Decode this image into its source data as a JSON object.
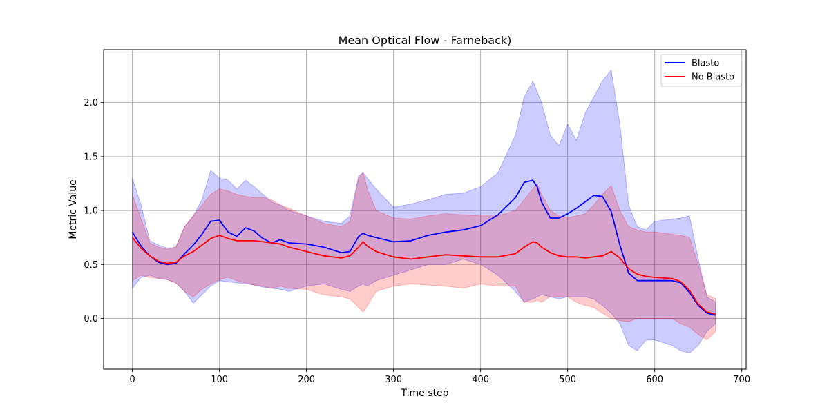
{
  "chart_data": {
    "type": "line",
    "title": "Mean Optical Flow - Farneback)",
    "xlabel": "Time step",
    "ylabel": "Metric Value",
    "xlim": [
      -33,
      705
    ],
    "ylim": [
      -0.47,
      2.49
    ],
    "xticks": [
      0,
      100,
      200,
      300,
      400,
      500,
      600,
      700
    ],
    "yticks": [
      0.0,
      0.5,
      1.0,
      1.5,
      2.0
    ],
    "xtick_labels": [
      "0",
      "100",
      "200",
      "300",
      "400",
      "500",
      "600",
      "700"
    ],
    "ytick_labels": [
      "0.0",
      "0.5",
      "1.0",
      "1.5",
      "2.0"
    ],
    "grid": true,
    "legend_position": "top-right",
    "series": [
      {
        "name": "Blasto",
        "color": "#0000ff",
        "band_color": "#0000ff",
        "x": [
          0,
          10,
          20,
          30,
          40,
          50,
          60,
          70,
          80,
          90,
          100,
          110,
          120,
          130,
          140,
          150,
          160,
          170,
          180,
          200,
          220,
          240,
          250,
          260,
          265,
          270,
          280,
          300,
          320,
          340,
          360,
          380,
          400,
          420,
          440,
          450,
          460,
          465,
          470,
          480,
          490,
          500,
          510,
          520,
          530,
          540,
          550,
          560,
          570,
          580,
          590,
          600,
          620,
          630,
          640,
          650,
          660,
          670
        ],
        "mean": [
          0.8,
          0.67,
          0.58,
          0.52,
          0.5,
          0.51,
          0.6,
          0.68,
          0.78,
          0.9,
          0.91,
          0.8,
          0.76,
          0.84,
          0.81,
          0.74,
          0.7,
          0.73,
          0.7,
          0.69,
          0.66,
          0.61,
          0.62,
          0.76,
          0.79,
          0.77,
          0.75,
          0.71,
          0.72,
          0.77,
          0.8,
          0.82,
          0.86,
          0.96,
          1.12,
          1.26,
          1.28,
          1.22,
          1.08,
          0.93,
          0.93,
          0.97,
          1.02,
          1.08,
          1.14,
          1.13,
          0.99,
          0.68,
          0.42,
          0.35,
          0.35,
          0.35,
          0.35,
          0.33,
          0.24,
          0.12,
          0.05,
          0.03
        ],
        "lower": [
          0.28,
          0.38,
          0.4,
          0.37,
          0.36,
          0.33,
          0.25,
          0.14,
          0.22,
          0.3,
          0.35,
          0.34,
          0.33,
          0.32,
          0.31,
          0.29,
          0.28,
          0.27,
          0.25,
          0.3,
          0.32,
          0.27,
          0.25,
          0.3,
          0.32,
          0.3,
          0.35,
          0.4,
          0.45,
          0.5,
          0.5,
          0.55,
          0.5,
          0.4,
          0.25,
          0.15,
          0.18,
          0.2,
          0.22,
          0.2,
          0.18,
          0.2,
          0.2,
          0.2,
          0.18,
          0.12,
          0.05,
          -0.05,
          -0.25,
          -0.3,
          -0.2,
          -0.2,
          -0.25,
          -0.3,
          -0.32,
          -0.25,
          -0.12,
          -0.05
        ],
        "upper": [
          1.3,
          1.05,
          0.72,
          0.68,
          0.65,
          0.66,
          0.85,
          0.95,
          1.1,
          1.37,
          1.3,
          1.28,
          1.2,
          1.28,
          1.22,
          1.15,
          1.08,
          1.05,
          1.0,
          0.95,
          0.9,
          0.88,
          0.95,
          1.32,
          1.35,
          1.3,
          1.2,
          1.03,
          1.06,
          1.1,
          1.15,
          1.16,
          1.22,
          1.35,
          1.7,
          2.05,
          2.2,
          2.1,
          2.0,
          1.7,
          1.6,
          1.8,
          1.65,
          1.9,
          2.05,
          2.2,
          2.3,
          1.8,
          1.05,
          0.85,
          0.82,
          0.9,
          0.92,
          0.93,
          0.95,
          0.55,
          0.2,
          0.15
        ]
      },
      {
        "name": "No Blasto",
        "color": "#ff0000",
        "band_color": "#ff0000",
        "x": [
          0,
          10,
          20,
          30,
          40,
          50,
          60,
          70,
          80,
          90,
          100,
          110,
          120,
          130,
          140,
          150,
          160,
          170,
          180,
          200,
          220,
          240,
          250,
          260,
          265,
          270,
          280,
          300,
          320,
          340,
          360,
          380,
          400,
          420,
          440,
          450,
          460,
          465,
          470,
          480,
          490,
          500,
          510,
          520,
          530,
          540,
          550,
          560,
          570,
          580,
          590,
          600,
          620,
          630,
          640,
          650,
          660,
          670
        ],
        "mean": [
          0.75,
          0.65,
          0.58,
          0.53,
          0.51,
          0.52,
          0.58,
          0.62,
          0.68,
          0.74,
          0.77,
          0.74,
          0.72,
          0.72,
          0.72,
          0.71,
          0.7,
          0.69,
          0.66,
          0.62,
          0.58,
          0.56,
          0.58,
          0.66,
          0.71,
          0.67,
          0.62,
          0.57,
          0.55,
          0.57,
          0.59,
          0.58,
          0.57,
          0.57,
          0.6,
          0.66,
          0.71,
          0.7,
          0.66,
          0.61,
          0.58,
          0.57,
          0.57,
          0.56,
          0.57,
          0.58,
          0.62,
          0.56,
          0.46,
          0.41,
          0.39,
          0.38,
          0.37,
          0.34,
          0.26,
          0.13,
          0.06,
          0.04
        ],
        "lower": [
          0.35,
          0.4,
          0.38,
          0.37,
          0.36,
          0.33,
          0.25,
          0.2,
          0.27,
          0.32,
          0.36,
          0.38,
          0.35,
          0.33,
          0.31,
          0.3,
          0.28,
          0.3,
          0.28,
          0.27,
          0.22,
          0.2,
          0.18,
          0.1,
          0.06,
          0.12,
          0.25,
          0.3,
          0.32,
          0.31,
          0.3,
          0.28,
          0.32,
          0.3,
          0.3,
          0.15,
          0.15,
          0.17,
          0.15,
          0.2,
          0.2,
          0.2,
          0.15,
          0.12,
          0.1,
          0.05,
          0.0,
          -0.02,
          -0.03,
          0.0,
          0.0,
          0.0,
          0.0,
          -0.05,
          -0.08,
          -0.15,
          -0.2,
          -0.12
        ],
        "upper": [
          1.15,
          0.92,
          0.7,
          0.66,
          0.64,
          0.66,
          0.85,
          0.95,
          1.05,
          1.15,
          1.2,
          1.18,
          1.15,
          1.13,
          1.12,
          1.12,
          1.1,
          1.05,
          1.02,
          0.95,
          0.88,
          0.85,
          0.9,
          1.3,
          1.35,
          1.2,
          1.0,
          0.93,
          0.92,
          0.95,
          0.97,
          0.96,
          0.95,
          0.95,
          1.0,
          1.1,
          1.2,
          1.25,
          1.15,
          1.0,
          0.95,
          0.93,
          0.95,
          0.97,
          1.05,
          1.15,
          1.23,
          1.0,
          0.85,
          0.82,
          0.8,
          0.8,
          0.78,
          0.77,
          0.75,
          0.5,
          0.22,
          0.18
        ]
      }
    ]
  }
}
